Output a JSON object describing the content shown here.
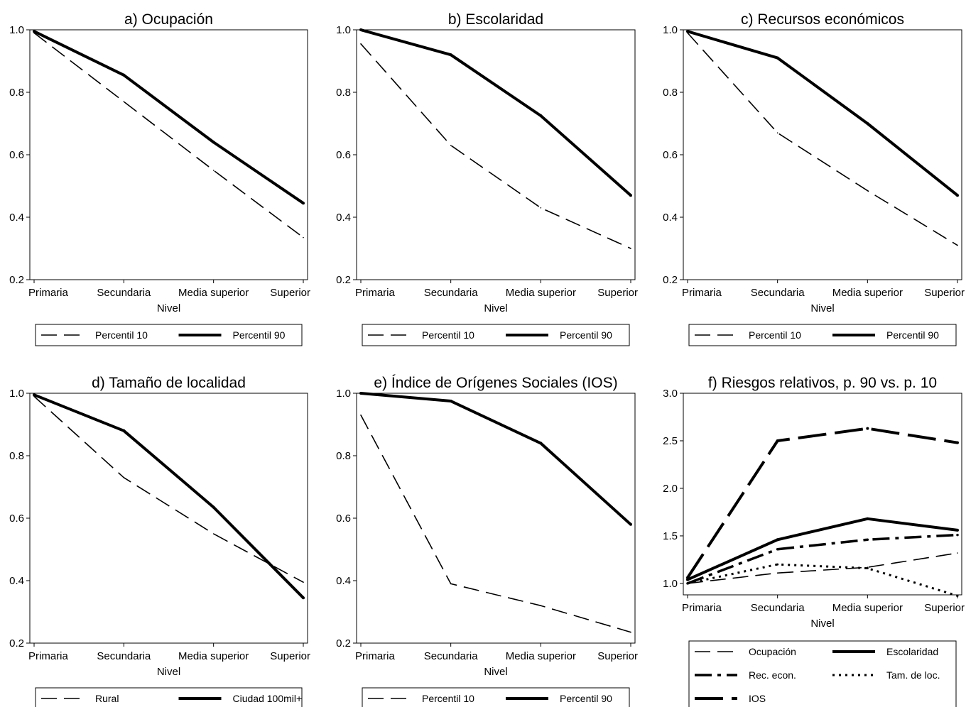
{
  "chart_data": [
    {
      "type": "line",
      "title": "a) Ocupación",
      "xlabel": "Nivel",
      "ylabel": "",
      "categories": [
        "Primaria",
        "Secundaria",
        "Media superior",
        "Superior"
      ],
      "ylim": [
        0.2,
        1.0
      ],
      "yticks": [
        "0.2",
        "0.4",
        "0.6",
        "0.8",
        "1.0"
      ],
      "grid": false,
      "legend_position": "bottom",
      "series": [
        {
          "name": "Percentil 10",
          "style": "dash",
          "values": [
            0.99,
            0.77,
            0.55,
            0.335
          ]
        },
        {
          "name": "Percentil 90",
          "style": "solid",
          "values": [
            0.995,
            0.855,
            0.64,
            0.445
          ]
        }
      ]
    },
    {
      "type": "line",
      "title": "b) Escolaridad",
      "xlabel": "Nivel",
      "ylabel": "",
      "categories": [
        "Primaria",
        "Secundaria",
        "Media superior",
        "Superior"
      ],
      "ylim": [
        0.2,
        1.0
      ],
      "yticks": [
        "0.2",
        "0.4",
        "0.6",
        "0.8",
        "1.0"
      ],
      "grid": false,
      "legend_position": "bottom",
      "series": [
        {
          "name": "Percentil 10",
          "style": "dash",
          "values": [
            0.955,
            0.63,
            0.43,
            0.3
          ]
        },
        {
          "name": "Percentil 90",
          "style": "solid",
          "values": [
            1.0,
            0.92,
            0.725,
            0.47
          ]
        }
      ]
    },
    {
      "type": "line",
      "title": "c) Recursos económicos",
      "xlabel": "Nivel",
      "ylabel": "",
      "categories": [
        "Primaria",
        "Secundaria",
        "Media superior",
        "Superior"
      ],
      "ylim": [
        0.2,
        1.0
      ],
      "yticks": [
        "0.2",
        "0.4",
        "0.6",
        "0.8",
        "1.0"
      ],
      "grid": false,
      "legend_position": "bottom",
      "series": [
        {
          "name": "Percentil 10",
          "style": "dash",
          "values": [
            0.99,
            0.67,
            0.485,
            0.31
          ]
        },
        {
          "name": "Percentil 90",
          "style": "solid",
          "values": [
            0.995,
            0.91,
            0.7,
            0.47
          ]
        }
      ]
    },
    {
      "type": "line",
      "title": "d) Tamaño de localidad",
      "xlabel": "Nivel",
      "ylabel": "",
      "categories": [
        "Primaria",
        "Secundaria",
        "Media superior",
        "Superior"
      ],
      "ylim": [
        0.2,
        1.0
      ],
      "yticks": [
        "0.2",
        "0.4",
        "0.6",
        "0.8",
        "1.0"
      ],
      "grid": false,
      "legend_position": "bottom",
      "series": [
        {
          "name": "Rural",
          "style": "dash",
          "values": [
            0.99,
            0.73,
            0.55,
            0.395
          ]
        },
        {
          "name": "Ciudad 100mil+",
          "style": "solid",
          "values": [
            0.995,
            0.88,
            0.635,
            0.345
          ]
        }
      ]
    },
    {
      "type": "line",
      "title": "e) Índice de Orígenes Sociales (IOS)",
      "xlabel": "Nivel",
      "ylabel": "",
      "categories": [
        "Primaria",
        "Secundaria",
        "Media superior",
        "Superior"
      ],
      "ylim": [
        0.2,
        1.0
      ],
      "yticks": [
        "0.2",
        "0.4",
        "0.6",
        "0.8",
        "1.0"
      ],
      "grid": false,
      "legend_position": "bottom",
      "series": [
        {
          "name": "Percentil 10",
          "style": "dash",
          "values": [
            0.93,
            0.39,
            0.32,
            0.235
          ]
        },
        {
          "name": "Percentil 90",
          "style": "solid",
          "values": [
            1.0,
            0.975,
            0.84,
            0.58
          ]
        }
      ]
    },
    {
      "type": "line",
      "title": "f) Riesgos relativos, p. 90 vs. p. 10",
      "xlabel": "Nivel",
      "ylabel": "",
      "categories": [
        "Primaria",
        "Secundaria",
        "Media superior",
        "Superior"
      ],
      "ylim": [
        0.88,
        3.0
      ],
      "yticks": [
        "1.0",
        "1.5",
        "2.0",
        "2.5",
        "3.0"
      ],
      "grid": false,
      "legend_position": "bottom",
      "series": [
        {
          "name": "Ocupación",
          "style": "dash",
          "values": [
            1.0,
            1.11,
            1.17,
            1.32
          ]
        },
        {
          "name": "Escolaridad",
          "style": "solid",
          "values": [
            1.04,
            1.46,
            1.68,
            1.56
          ]
        },
        {
          "name": "Rec. econ.",
          "style": "dashdot",
          "values": [
            1.0,
            1.36,
            1.46,
            1.51
          ]
        },
        {
          "name": "Tam. de loc.",
          "style": "dot",
          "values": [
            1.0,
            1.2,
            1.16,
            0.87
          ]
        },
        {
          "name": "IOS",
          "style": "longdash",
          "values": [
            1.06,
            2.5,
            2.63,
            2.48
          ]
        }
      ]
    }
  ]
}
